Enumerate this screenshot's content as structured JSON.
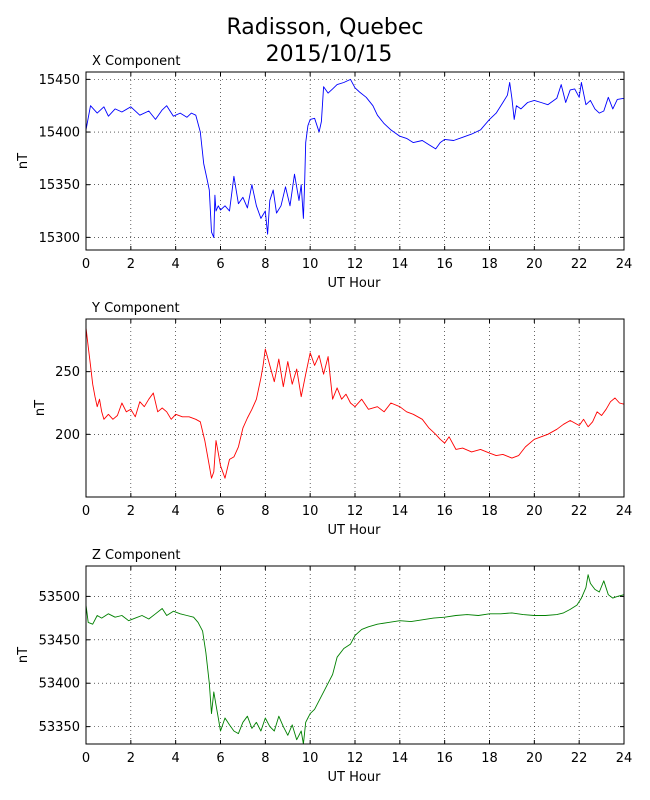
{
  "figure": {
    "title_line1": "Radisson, Quebec",
    "title_line2": "2015/10/15"
  },
  "chart_data": [
    {
      "type": "line",
      "title": "X Component",
      "xlabel": "UT Hour",
      "ylabel": "nT",
      "xlim": [
        0,
        24
      ],
      "ylim": [
        15288,
        15457
      ],
      "xticks": [
        0,
        2,
        4,
        6,
        8,
        10,
        12,
        14,
        16,
        18,
        20,
        22,
        24
      ],
      "yticks": [
        15300,
        15350,
        15400,
        15450
      ],
      "grid": true,
      "color": "#0000ff",
      "series": [
        {
          "x": [
            0,
            0.2,
            0.5,
            0.8,
            1,
            1.3,
            1.6,
            2,
            2.4,
            2.8,
            3.1,
            3.4,
            3.6,
            3.9,
            4.2,
            4.5,
            4.7,
            4.9,
            5.1,
            5.25,
            5.4,
            5.5,
            5.6,
            5.7,
            5.75,
            5.8,
            5.9,
            6,
            6.2,
            6.4,
            6.6,
            6.8,
            7,
            7.2,
            7.4,
            7.6,
            7.8,
            8,
            8.1,
            8.2,
            8.35,
            8.5,
            8.7,
            8.9,
            9.1,
            9.3,
            9.5,
            9.6,
            9.7,
            9.75,
            9.8,
            9.9,
            10,
            10.2,
            10.4,
            10.5,
            10.6,
            10.8,
            11,
            11.2,
            11.5,
            11.8,
            12,
            12.2,
            12.5,
            12.8,
            13,
            13.3,
            13.6,
            14,
            14.3,
            14.6,
            15,
            15.3,
            15.6,
            15.8,
            16,
            16.4,
            16.8,
            17.2,
            17.6,
            18,
            18.3,
            18.6,
            18.8,
            18.9,
            19,
            19.1,
            19.2,
            19.4,
            19.7,
            20,
            20.3,
            20.6,
            21,
            21.2,
            21.4,
            21.6,
            21.8,
            22,
            22.1,
            22.3,
            22.5,
            22.7,
            22.9,
            23.1,
            23.3,
            23.5,
            23.7,
            24
          ],
          "y": [
            15402,
            15425,
            15418,
            15424,
            15415,
            15422,
            15419,
            15424,
            15416,
            15420,
            15412,
            15421,
            15425,
            15415,
            15418,
            15414,
            15418,
            15416,
            15400,
            15370,
            15355,
            15345,
            15305,
            15300,
            15340,
            15325,
            15330,
            15326,
            15330,
            15325,
            15358,
            15332,
            15338,
            15328,
            15350,
            15330,
            15318,
            15325,
            15303,
            15335,
            15345,
            15323,
            15330,
            15348,
            15330,
            15360,
            15335,
            15350,
            15318,
            15350,
            15390,
            15406,
            15412,
            15413,
            15400,
            15410,
            15443,
            15437,
            15441,
            15445,
            15447,
            15450,
            15442,
            15438,
            15433,
            15425,
            15416,
            15408,
            15402,
            15396,
            15394,
            15390,
            15392,
            15388,
            15384,
            15390,
            15393,
            15392,
            15395,
            15398,
            15402,
            15412,
            15418,
            15428,
            15435,
            15447,
            15432,
            15412,
            15425,
            15422,
            15428,
            15430,
            15428,
            15426,
            15432,
            15445,
            15428,
            15440,
            15441,
            15433,
            15447,
            15426,
            15430,
            15422,
            15418,
            15420,
            15433,
            15422,
            15431,
            15432
          ]
        }
      ]
    },
    {
      "type": "line",
      "title": "Y Component",
      "xlabel": "UT Hour",
      "ylabel": "nT",
      "xlim": [
        0,
        24
      ],
      "ylim": [
        150,
        292
      ],
      "xticks": [
        0,
        2,
        4,
        6,
        8,
        10,
        12,
        14,
        16,
        18,
        20,
        22,
        24
      ],
      "yticks": [
        200,
        250
      ],
      "grid": true,
      "color": "#ff0000",
      "series": [
        {
          "x": [
            0,
            0.1,
            0.2,
            0.3,
            0.4,
            0.5,
            0.6,
            0.7,
            0.8,
            1,
            1.2,
            1.4,
            1.6,
            1.8,
            2,
            2.2,
            2.4,
            2.6,
            2.8,
            3,
            3.2,
            3.4,
            3.6,
            3.8,
            4,
            4.3,
            4.6,
            4.9,
            5.1,
            5.3,
            5.5,
            5.6,
            5.7,
            5.8,
            5.9,
            6,
            6.2,
            6.4,
            6.6,
            6.8,
            7,
            7.2,
            7.4,
            7.6,
            7.8,
            7.9,
            8,
            8.2,
            8.4,
            8.6,
            8.8,
            9,
            9.2,
            9.4,
            9.6,
            9.8,
            10,
            10.2,
            10.4,
            10.6,
            10.8,
            11,
            11.2,
            11.4,
            11.6,
            11.8,
            12,
            12.3,
            12.6,
            13,
            13.3,
            13.6,
            14,
            14.3,
            14.6,
            15,
            15.3,
            15.6,
            15.8,
            16,
            16.2,
            16.5,
            16.8,
            17.2,
            17.6,
            18,
            18.3,
            18.6,
            19,
            19.3,
            19.6,
            20,
            20.3,
            20.6,
            21,
            21.3,
            21.6,
            22,
            22.2,
            22.4,
            22.6,
            22.8,
            23,
            23.2,
            23.4,
            23.6,
            23.8,
            24
          ],
          "y": [
            285,
            270,
            255,
            240,
            230,
            222,
            228,
            218,
            212,
            216,
            212,
            215,
            225,
            218,
            220,
            214,
            226,
            222,
            228,
            233,
            218,
            221,
            218,
            212,
            216,
            214,
            214,
            212,
            210,
            195,
            175,
            165,
            170,
            195,
            185,
            175,
            165,
            180,
            182,
            190,
            205,
            213,
            220,
            228,
            245,
            255,
            268,
            255,
            242,
            260,
            238,
            258,
            240,
            252,
            230,
            248,
            265,
            255,
            263,
            248,
            262,
            228,
            237,
            228,
            232,
            225,
            222,
            228,
            220,
            222,
            218,
            225,
            222,
            218,
            216,
            212,
            205,
            200,
            196,
            193,
            198,
            188,
            189,
            186,
            188,
            185,
            183,
            184,
            181,
            183,
            190,
            196,
            198,
            200,
            204,
            208,
            211,
            207,
            212,
            206,
            210,
            218,
            215,
            220,
            226,
            229,
            225,
            224
          ]
        }
      ]
    },
    {
      "type": "line",
      "title": "Z Component",
      "xlabel": "UT Hour",
      "ylabel": "nT",
      "xlim": [
        0,
        24
      ],
      "ylim": [
        53330,
        53535
      ],
      "xticks": [
        0,
        2,
        4,
        6,
        8,
        10,
        12,
        14,
        16,
        18,
        20,
        22,
        24
      ],
      "yticks": [
        53350,
        53400,
        53450,
        53500
      ],
      "grid": true,
      "color": "#008000",
      "series": [
        {
          "x": [
            0,
            0.1,
            0.3,
            0.5,
            0.7,
            1,
            1.3,
            1.6,
            1.9,
            2.2,
            2.5,
            2.8,
            3.1,
            3.4,
            3.6,
            3.9,
            4.2,
            4.5,
            4.8,
            5,
            5.2,
            5.35,
            5.5,
            5.6,
            5.7,
            5.8,
            5.9,
            6,
            6.2,
            6.4,
            6.6,
            6.8,
            7,
            7.2,
            7.4,
            7.6,
            7.8,
            8,
            8.2,
            8.4,
            8.6,
            8.8,
            9,
            9.2,
            9.4,
            9.6,
            9.7,
            9.8,
            9.9,
            10,
            10.2,
            10.5,
            10.8,
            11,
            11.2,
            11.5,
            11.8,
            12,
            12.3,
            12.6,
            13,
            13.5,
            14,
            14.5,
            15,
            15.5,
            16,
            16.5,
            17,
            17.5,
            18,
            18.5,
            19,
            19.5,
            20,
            20.5,
            21,
            21.3,
            21.6,
            21.9,
            22.1,
            22.3,
            22.4,
            22.5,
            22.7,
            22.9,
            23.1,
            23.3,
            23.5,
            23.7,
            24
          ],
          "y": [
            53490,
            53470,
            53468,
            53478,
            53475,
            53480,
            53476,
            53478,
            53472,
            53475,
            53478,
            53474,
            53480,
            53486,
            53478,
            53483,
            53480,
            53478,
            53476,
            53470,
            53460,
            53435,
            53400,
            53365,
            53390,
            53375,
            53360,
            53345,
            53360,
            53352,
            53345,
            53342,
            53355,
            53362,
            53348,
            53355,
            53345,
            53360,
            53350,
            53345,
            53362,
            53350,
            53340,
            53352,
            53335,
            53345,
            53330,
            53355,
            53360,
            53365,
            53370,
            53385,
            53400,
            53410,
            53430,
            53440,
            53445,
            53455,
            53462,
            53465,
            53468,
            53470,
            53472,
            53471,
            53473,
            53475,
            53476,
            53478,
            53479,
            53478,
            53480,
            53480,
            53481,
            53479,
            53478,
            53478,
            53479,
            53481,
            53485,
            53490,
            53498,
            53510,
            53525,
            53515,
            53508,
            53505,
            53518,
            53502,
            53498,
            53500,
            53502
          ]
        }
      ]
    }
  ]
}
